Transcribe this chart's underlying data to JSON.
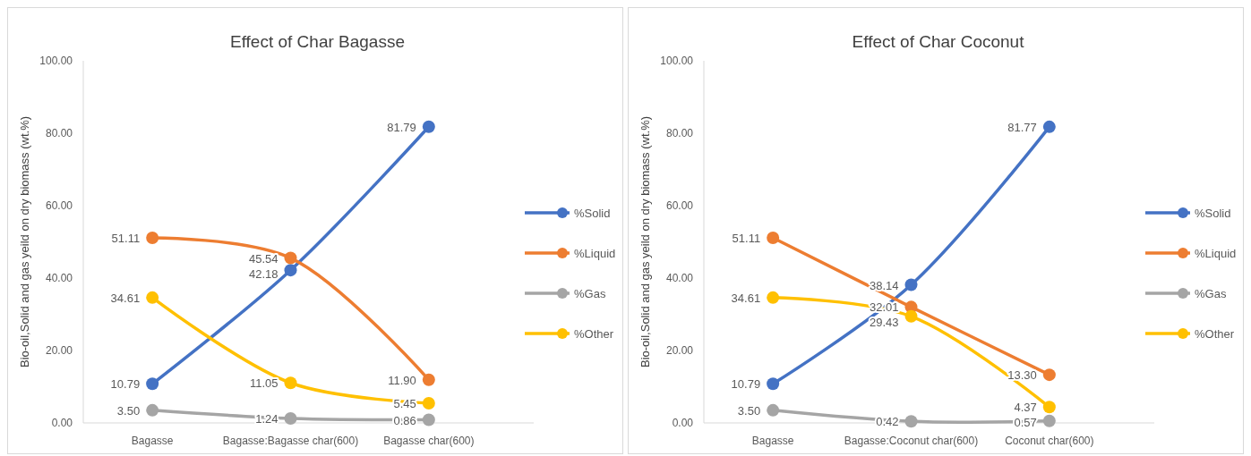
{
  "chart_data": [
    {
      "type": "line",
      "title": "Effect of Char Bagasse",
      "ylabel": "Bio-oil,Solid and gas  yeild on dry biomass (wt.%)",
      "categories": [
        "Bagasse",
        "Bagasse:Bagasse char(600)",
        "Bagasse char(600)"
      ],
      "ylim": [
        0,
        100
      ],
      "yticks": [
        {
          "value": 0,
          "label": "0.00"
        },
        {
          "value": 20,
          "label": "20.00"
        },
        {
          "value": 40,
          "label": "40.00"
        },
        {
          "value": 60,
          "label": "60.00"
        },
        {
          "value": 80,
          "label": "80.00"
        },
        {
          "value": 100,
          "label": "100.00"
        }
      ],
      "grid": false,
      "legend": "right",
      "marker": "circle",
      "line_style": "solid",
      "series": [
        {
          "name": "%Solid",
          "color": "#4472c4",
          "values": [
            10.79,
            42.18,
            81.79
          ],
          "value_labels": [
            "10.79",
            "42.18",
            "81.79"
          ]
        },
        {
          "name": "%Liquid",
          "color": "#ed7d31",
          "values": [
            51.11,
            45.54,
            11.9
          ],
          "value_labels": [
            "51.11",
            "45.54",
            "11.90"
          ]
        },
        {
          "name": "%Gas",
          "color": "#a5a5a5",
          "values": [
            3.5,
            1.24,
            0.86
          ],
          "value_labels": [
            "3.50",
            "1.24",
            "0.86"
          ]
        },
        {
          "name": "%Other",
          "color": "#ffc000",
          "values": [
            34.61,
            11.05,
            5.45
          ],
          "value_labels": [
            "34.61",
            "11.05",
            "5.45"
          ]
        }
      ]
    },
    {
      "type": "line",
      "title": "Effect of Char Coconut",
      "ylabel": "Bio-oil,Solid and gas  yeild on dry biomass (wt.%)",
      "categories": [
        "Bagasse",
        "Bagasse:Coconut char(600)",
        "Coconut char(600)"
      ],
      "ylim": [
        0,
        100
      ],
      "yticks": [
        {
          "value": 0,
          "label": "0.00"
        },
        {
          "value": 20,
          "label": "20.00"
        },
        {
          "value": 40,
          "label": "40.00"
        },
        {
          "value": 60,
          "label": "60.00"
        },
        {
          "value": 80,
          "label": "80.00"
        },
        {
          "value": 100,
          "label": "100.00"
        }
      ],
      "grid": false,
      "legend": "right",
      "marker": "circle",
      "line_style": "solid",
      "series": [
        {
          "name": "%Solid",
          "color": "#4472c4",
          "values": [
            10.79,
            38.14,
            81.77
          ],
          "value_labels": [
            "10.79",
            "38.14",
            "81.77"
          ]
        },
        {
          "name": "%Liquid",
          "color": "#ed7d31",
          "values": [
            51.11,
            32.01,
            13.3
          ],
          "value_labels": [
            "51.11",
            "32.01",
            "13.30"
          ]
        },
        {
          "name": "%Gas",
          "color": "#a5a5a5",
          "values": [
            3.5,
            0.42,
            0.57
          ],
          "value_labels": [
            "3.50",
            "0.42",
            "0.57"
          ]
        },
        {
          "name": "%Other",
          "color": "#ffc000",
          "values": [
            34.61,
            29.43,
            4.37
          ],
          "value_labels": [
            "34.61",
            "29.43",
            "4.37"
          ]
        }
      ]
    }
  ]
}
